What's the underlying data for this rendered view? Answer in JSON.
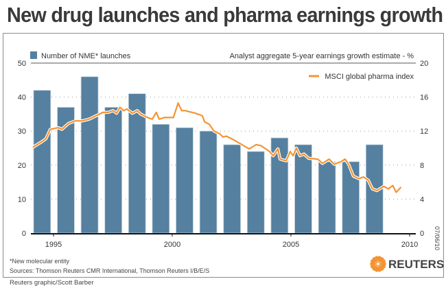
{
  "title": "New drug launches and pharma earnings growth",
  "legend": {
    "bars": "Number of NME* launches",
    "right_axis_title": "Analyst aggregate 5-year earnings growth estimate - %",
    "line": "MSCI global pharma index"
  },
  "footnote": "*New molecular entity",
  "sources": "Sources: Thomson Reuters CMR International, Thomson Reuters I/B/E/S",
  "credit": "Reuters graphic/Scott Barber",
  "date_stamp": "07/06/10",
  "logo_text": "REUTERS",
  "colors": {
    "bar": "#5580a0",
    "line": "#f39433",
    "logo": "#f39433"
  },
  "chart_data": {
    "type": "bar+line",
    "title": "New drug launches and pharma earnings growth",
    "x_ticks": [
      "1995",
      "2000",
      "2005",
      "2010"
    ],
    "x_tick_values": [
      1995,
      2000,
      2005,
      2010
    ],
    "xlim": [
      1994,
      2010.2
    ],
    "left_axis": {
      "ylim": [
        0,
        50
      ],
      "ticks": [
        "0",
        "10",
        "20",
        "30",
        "40",
        "50"
      ],
      "label": "Number of NME* launches"
    },
    "right_axis": {
      "ylim": [
        0,
        20
      ],
      "ticks": [
        "0",
        "4",
        "8",
        "12",
        "16",
        "20"
      ],
      "label": "Analyst aggregate 5-year earnings growth estimate - %"
    },
    "grid": true,
    "bars": {
      "name": "Number of NME* launches",
      "years": [
        1994,
        1995,
        1996,
        1997,
        1998,
        1999,
        2000,
        2001,
        2002,
        2003,
        2004,
        2005,
        2006,
        2007,
        2008
      ],
      "values": [
        42,
        37,
        46,
        37,
        41,
        32,
        31,
        30,
        26,
        24,
        28,
        26,
        21,
        21,
        26
      ]
    },
    "line": {
      "name": "MSCI global pharma index",
      "x": [
        1994.13,
        1994.48,
        1994.68,
        1994.86,
        1995.2,
        1995.35,
        1995.64,
        1995.92,
        1996.21,
        1996.5,
        1996.94,
        1997.08,
        1997.31,
        1997.51,
        1997.66,
        1997.8,
        1997.95,
        1998.09,
        1998.32,
        1998.53,
        1998.67,
        1998.96,
        1999.16,
        1999.33,
        1999.45,
        1999.68,
        2000.05,
        2000.25,
        2000.4,
        2000.55,
        2000.98,
        2001.27,
        2001.36,
        2001.56,
        2001.76,
        2001.99,
        2002.14,
        2002.28,
        2002.57,
        2003.24,
        2003.53,
        2003.73,
        2004.1,
        2004.25,
        2004.45,
        2004.54,
        2004.8,
        2004.97,
        2005.09,
        2005.23,
        2005.38,
        2005.55,
        2005.75,
        2006.13,
        2006.33,
        2006.61,
        2006.82,
        2007.11,
        2007.28,
        2007.43,
        2007.63,
        2007.86,
        2008.06,
        2008.26,
        2008.43,
        2008.62,
        2008.91,
        2009.11,
        2009.29,
        2009.43,
        2009.64
      ],
      "y": [
        10.1,
        10.7,
        11.1,
        12.2,
        12.4,
        12.2,
        12.9,
        13.2,
        13.2,
        13.4,
        14.0,
        14.2,
        14.2,
        14.4,
        14.1,
        14.8,
        14.4,
        14.6,
        14.1,
        14.4,
        14.0,
        13.6,
        13.4,
        14.2,
        13.4,
        13.6,
        13.6,
        15.3,
        14.4,
        14.4,
        14.1,
        13.8,
        13.1,
        12.8,
        12.0,
        11.7,
        11.3,
        11.4,
        11.0,
        9.9,
        10.4,
        10.3,
        9.6,
        9.1,
        9.9,
        8.7,
        8.5,
        9.6,
        9.1,
        10.0,
        9.1,
        9.3,
        8.8,
        8.7,
        8.2,
        8.7,
        8.1,
        8.4,
        8.7,
        8.1,
        6.7,
        6.4,
        6.6,
        6.2,
        5.2,
        5.0,
        5.5,
        5.2,
        5.6,
        4.8,
        5.4
      ]
    }
  }
}
